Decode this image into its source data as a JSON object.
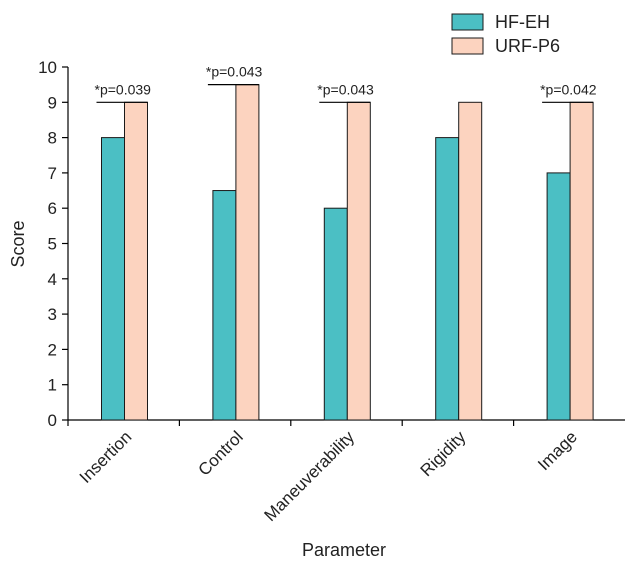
{
  "chart_data": {
    "type": "bar",
    "xlabel": "Parameter",
    "ylabel": "Score",
    "ylim": [
      0,
      10
    ],
    "yticks": [
      "0",
      "1",
      "2",
      "3",
      "4",
      "5",
      "6",
      "7",
      "8",
      "9",
      "10"
    ],
    "categories": [
      "Insertion",
      "Control",
      "Maneuverability",
      "Rigidity",
      "Image"
    ],
    "series": [
      {
        "name": "HF-EH",
        "values": [
          8,
          6.5,
          6,
          8,
          7
        ],
        "color": "#4bbfc4"
      },
      {
        "name": "URF-P6",
        "values": [
          9,
          9.5,
          9,
          9,
          9
        ],
        "color": "#fcd3bf"
      }
    ],
    "annotations": [
      {
        "category": "Insertion",
        "text": "*p=0.039"
      },
      {
        "category": "Control",
        "text": "*p=0.043"
      },
      {
        "category": "Maneuverability",
        "text": "*p=0.043"
      },
      {
        "category": "Image",
        "text": "*p=0.042"
      }
    ],
    "legend_position": "top-right",
    "grid": false
  }
}
